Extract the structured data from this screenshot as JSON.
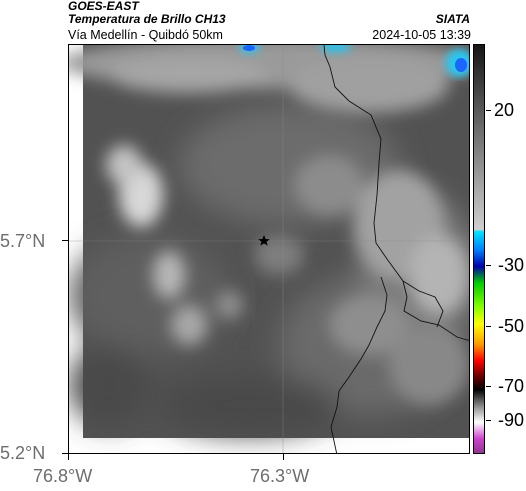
{
  "header": {
    "satellite": "GOES-EAST",
    "product": "Temperatura de Brillo CH13",
    "location": "Vía Medellín - Quibdó 50km",
    "source": "SIATA",
    "datetime": "2024-10-05 13:39"
  },
  "axes": {
    "x_ticks": [
      "76.8°W",
      "76.3°W"
    ],
    "y_ticks": [
      "5.7°N",
      "5.2°N"
    ]
  },
  "colorbar": {
    "ticks": [
      "20",
      "-30",
      "-50",
      "-70",
      "-90"
    ],
    "colors": {
      "warm_gray_top": "#2a2a2a",
      "light_gray": "#d8d8d8",
      "cyan": "#00e5ff",
      "blue": "#0000aa",
      "green": "#00cc00",
      "yellow": "#ffff00",
      "red": "#ff0000",
      "black": "#000000",
      "magenta": "#cc44cc"
    }
  },
  "map": {
    "marker": "star-marker",
    "base_color": "#4e4e4e",
    "cloud_color": "#dedede",
    "cold_top_color": "#29c6ef"
  }
}
